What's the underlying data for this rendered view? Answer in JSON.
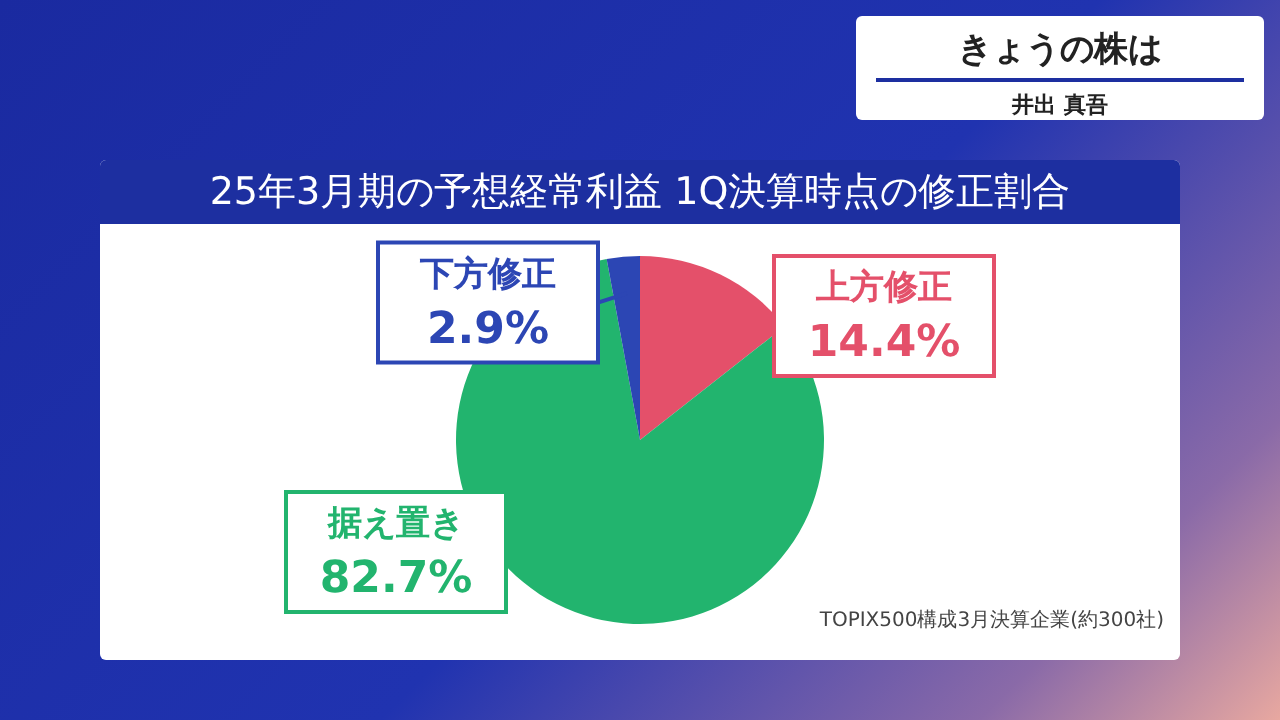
{
  "chart_data": {
    "type": "pie",
    "title": "25年3月期の予想経常利益 1Q決算時点の修正割合",
    "categories": [
      "上方修正",
      "据え置き",
      "下方修正"
    ],
    "values": [
      14.4,
      82.7,
      2.9
    ],
    "colors": [
      "#e4506a",
      "#22b46e",
      "#2c46b4"
    ],
    "value_labels": [
      "14.4%",
      "82.7%",
      "2.9%"
    ],
    "annotations": [
      "きょうの株は",
      "井出 真吾",
      "TOPIX500構成3月決算企業(約300社)"
    ]
  }
}
